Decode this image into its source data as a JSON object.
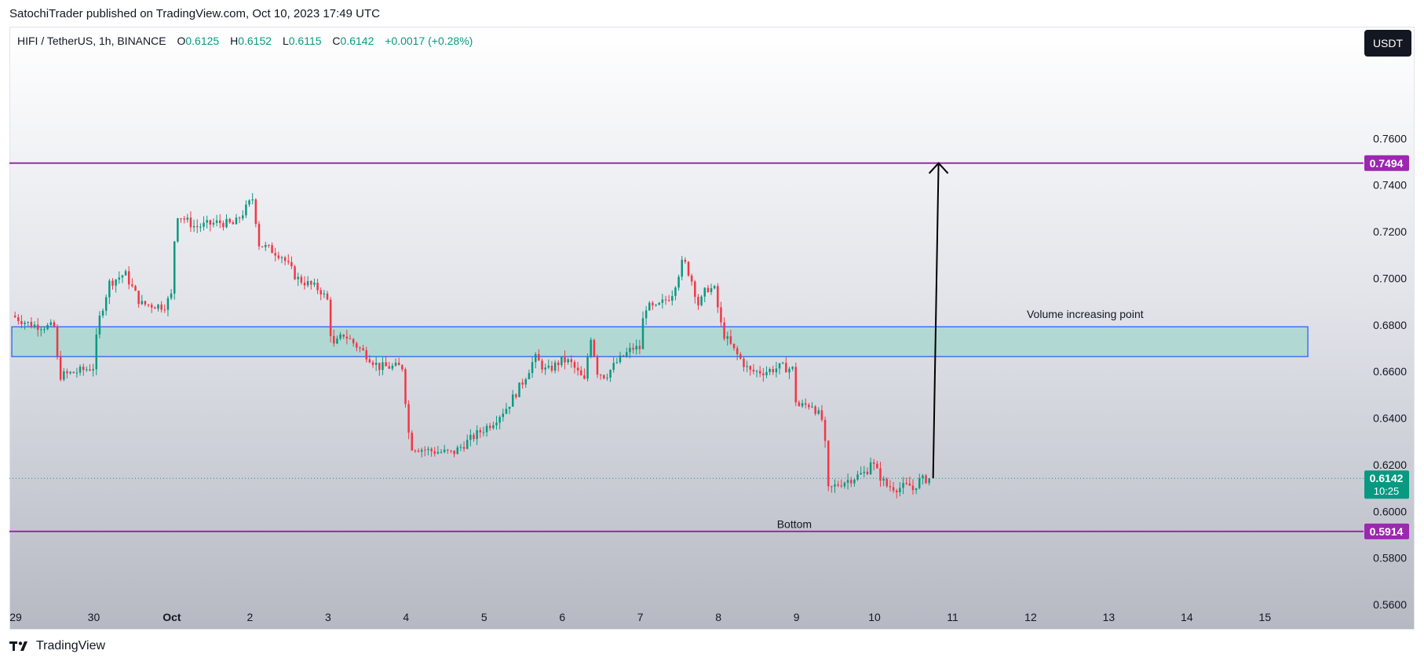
{
  "header": {
    "publisher_line": "SatochiTrader published on TradingView.com, Oct 10, 2023 17:49 UTC"
  },
  "legend": {
    "symbol": "HIFI / TetherUS, 1h, BINANCE",
    "o_label": "O",
    "o_value": "0.6125",
    "h_label": "H",
    "h_value": "0.6152",
    "l_label": "L",
    "l_value": "0.6115",
    "c_label": "C",
    "c_value": "0.6142",
    "change": "+0.0017 (+0.28%)"
  },
  "toolbar": {
    "currency_button": "USDT"
  },
  "footer": {
    "logo_text": "TradingView"
  },
  "colors": {
    "up": "#089981",
    "down": "#f23645",
    "level_line": "#9c27b0",
    "zone_fill": "#b2d8d3",
    "zone_border": "#2962ff",
    "arrow": "#000000",
    "price_tag": "#089981"
  },
  "chart_data": {
    "type": "candlestick",
    "y_ticks": [
      "0.7600",
      "0.7400",
      "0.7200",
      "0.7000",
      "0.6800",
      "0.6600",
      "0.6400",
      "0.6200",
      "0.6000",
      "0.5800",
      "0.5600"
    ],
    "y_tick_values": [
      0.76,
      0.74,
      0.72,
      0.7,
      0.68,
      0.66,
      0.64,
      0.62,
      0.6,
      0.58,
      0.56
    ],
    "ylim": [
      0.556,
      0.7958
    ],
    "x_ticks": [
      "29",
      "30",
      "Oct",
      "2",
      "3",
      "4",
      "5",
      "6",
      "7",
      "8",
      "9",
      "10",
      "11",
      "12",
      "13",
      "14",
      "15"
    ],
    "xlim": [
      29.0,
      45.64
    ],
    "candle_start": 28.95,
    "candle_interval_days": 0.041667,
    "anchors": [
      [
        28.95,
        0.684
      ],
      [
        29.2,
        0.68
      ],
      [
        29.5,
        0.679
      ],
      [
        29.55,
        0.658
      ],
      [
        29.8,
        0.66
      ],
      [
        30.0,
        0.662
      ],
      [
        30.05,
        0.68
      ],
      [
        30.2,
        0.698
      ],
      [
        30.4,
        0.702
      ],
      [
        30.6,
        0.689
      ],
      [
        30.9,
        0.688
      ],
      [
        31.0,
        0.693
      ],
      [
        31.05,
        0.728
      ],
      [
        31.3,
        0.722
      ],
      [
        31.6,
        0.724
      ],
      [
        31.8,
        0.723
      ],
      [
        31.95,
        0.73
      ],
      [
        32.05,
        0.735
      ],
      [
        32.1,
        0.715
      ],
      [
        32.4,
        0.71
      ],
      [
        32.6,
        0.7
      ],
      [
        32.9,
        0.695
      ],
      [
        33.0,
        0.69
      ],
      [
        33.05,
        0.67
      ],
      [
        33.2,
        0.676
      ],
      [
        33.5,
        0.667
      ],
      [
        33.65,
        0.662
      ],
      [
        33.95,
        0.662
      ],
      [
        34.05,
        0.628
      ],
      [
        34.3,
        0.626
      ],
      [
        34.6,
        0.625
      ],
      [
        34.9,
        0.633
      ],
      [
        35.1,
        0.638
      ],
      [
        35.3,
        0.645
      ],
      [
        35.5,
        0.656
      ],
      [
        35.65,
        0.666
      ],
      [
        35.8,
        0.66
      ],
      [
        36.0,
        0.665
      ],
      [
        36.1,
        0.664
      ],
      [
        36.3,
        0.655
      ],
      [
        36.35,
        0.678
      ],
      [
        36.45,
        0.66
      ],
      [
        36.55,
        0.658
      ],
      [
        36.7,
        0.664
      ],
      [
        36.9,
        0.67
      ],
      [
        37.0,
        0.67
      ],
      [
        37.05,
        0.688
      ],
      [
        37.2,
        0.687
      ],
      [
        37.4,
        0.693
      ],
      [
        37.55,
        0.708
      ],
      [
        37.65,
        0.7
      ],
      [
        37.75,
        0.688
      ],
      [
        37.85,
        0.696
      ],
      [
        37.95,
        0.695
      ],
      [
        38.05,
        0.677
      ],
      [
        38.2,
        0.669
      ],
      [
        38.4,
        0.66
      ],
      [
        38.6,
        0.66
      ],
      [
        38.8,
        0.662
      ],
      [
        38.95,
        0.661
      ],
      [
        39.0,
        0.645
      ],
      [
        39.2,
        0.646
      ],
      [
        39.35,
        0.638
      ],
      [
        39.4,
        0.609
      ],
      [
        39.55,
        0.612
      ],
      [
        39.7,
        0.614
      ],
      [
        39.9,
        0.617
      ],
      [
        39.95,
        0.622
      ],
      [
        40.05,
        0.616
      ],
      [
        40.15,
        0.611
      ],
      [
        40.3,
        0.61
      ],
      [
        40.45,
        0.611
      ],
      [
        40.5,
        0.609
      ],
      [
        40.55,
        0.613
      ],
      [
        40.7,
        0.6142
      ]
    ],
    "levels": [
      {
        "price": 0.7494,
        "label": "0.7494"
      },
      {
        "price": 0.5914,
        "label": "0.5914"
      }
    ],
    "zone": {
      "top": 0.6792,
      "bottom": 0.6664,
      "x_start": 28.95,
      "x_end": 45.55
    },
    "current_price": {
      "price": 0.6142,
      "label": "0.6142",
      "countdown": "10:25"
    },
    "arrow": {
      "x0": 40.75,
      "y0": 0.6142,
      "x1": 40.82,
      "y1": 0.7494
    },
    "annotations": [
      {
        "text": "Volume increasing point",
        "x": 41.95,
        "y": 0.6829
      },
      {
        "text": "Bottom",
        "x": 38.75,
        "y": 0.5928
      }
    ]
  }
}
